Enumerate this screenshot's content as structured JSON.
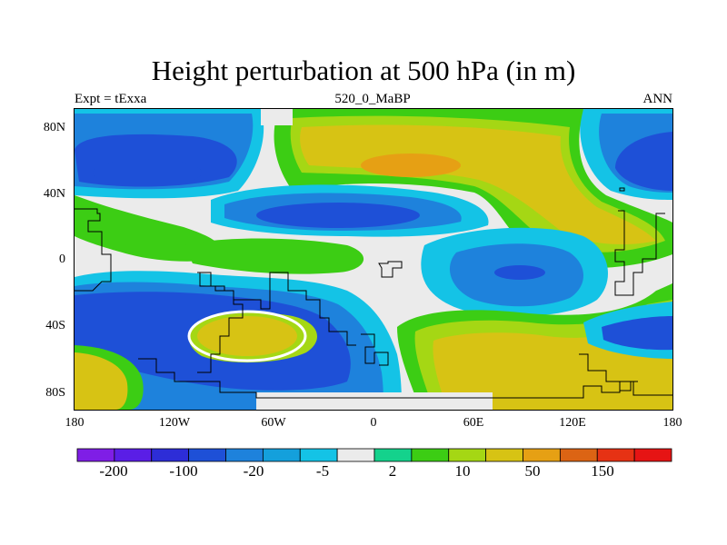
{
  "title": "Height perturbation at 500 hPa (in m)",
  "subtitle_left": "Expt = tExxa",
  "subtitle_center": "520_0_MaBP",
  "subtitle_right": "ANN",
  "lat_ticks": [
    "80N",
    "40N",
    "0",
    "40S",
    "80S"
  ],
  "lon_ticks": [
    "180",
    "120W",
    "60W",
    "0",
    "60E",
    "120E",
    "180"
  ],
  "colorbar": {
    "colors": [
      "#7f1ee6",
      "#5a1ee6",
      "#2d2dd7",
      "#1e50d7",
      "#1e82dc",
      "#14a0dc",
      "#14c3e6",
      "#ebebeb",
      "#14d28c",
      "#3ccd14",
      "#a5d714",
      "#d7c314",
      "#e6a014",
      "#dc6414",
      "#e63214",
      "#e61414"
    ],
    "labels": [
      "-200",
      "-100",
      "-20",
      "-5",
      "2",
      "10",
      "50",
      "150"
    ]
  },
  "field_colors": {
    "background": "#ebebeb",
    "neg_strong": "#1e50d7",
    "neg_medium": "#1e82dc",
    "neg_light": "#14c3e6",
    "neutral": "#ebebeb",
    "pos_light": "#3ccd14",
    "pos_medium": "#a5d714",
    "pos_strong": "#d7c314",
    "pos_peak": "#e6a014",
    "coast": "#000000"
  }
}
